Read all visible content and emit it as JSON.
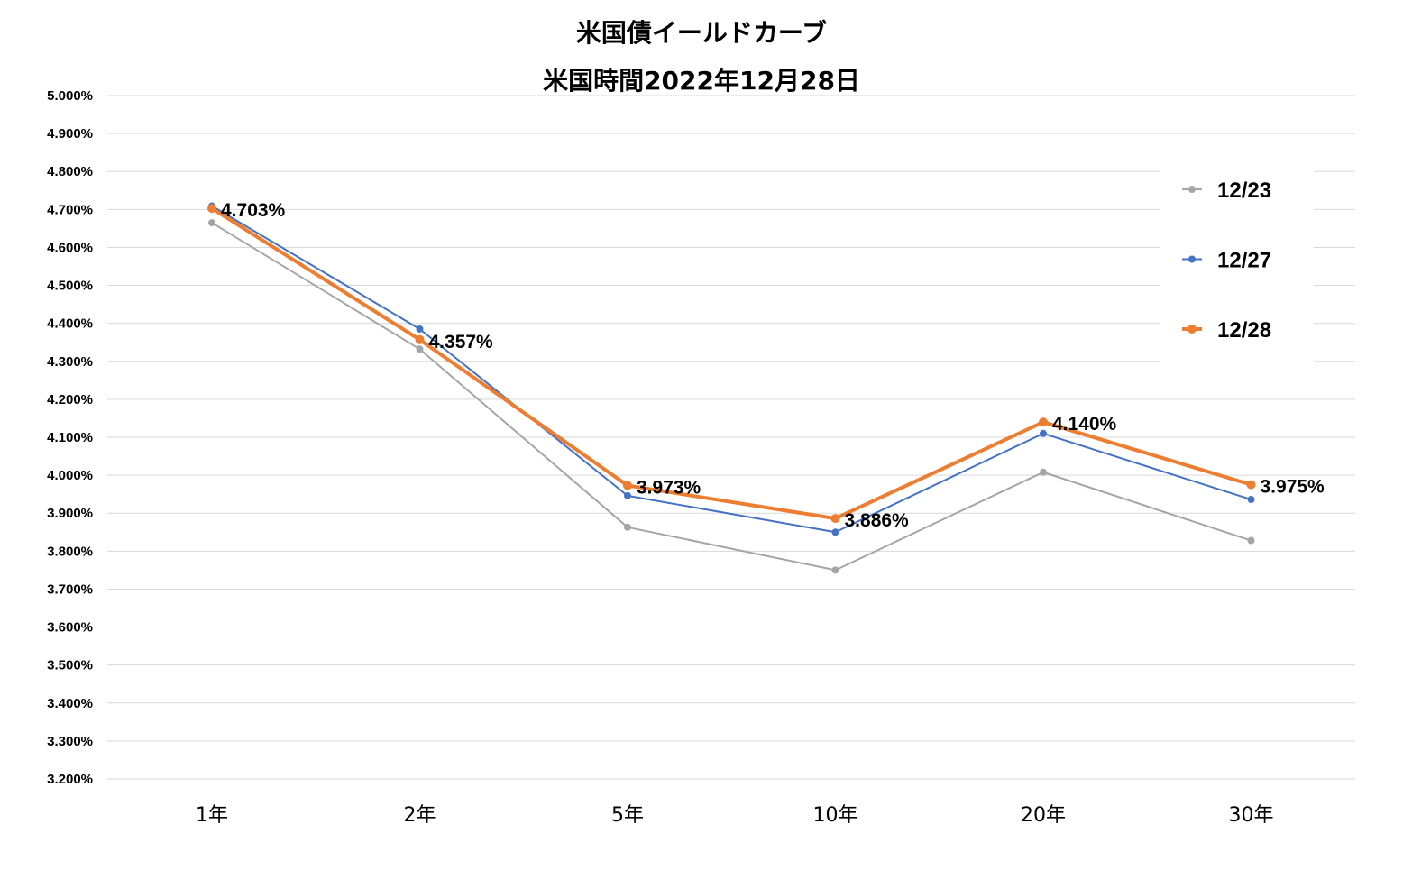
{
  "chart_data": {
    "type": "line",
    "title": "米国債イールドカーブ",
    "subtitle": "米国時間2022年12月28日",
    "categories": [
      "1年",
      "2年",
      "5年",
      "10年",
      "20年",
      "30年"
    ],
    "ylim": [
      3.2,
      5.0
    ],
    "ytick_step": 0.1,
    "ytick_labels": [
      "5.000%",
      "4.900%",
      "4.800%",
      "4.700%",
      "4.600%",
      "4.500%",
      "4.400%",
      "4.300%",
      "4.200%",
      "4.100%",
      "4.000%",
      "3.900%",
      "3.800%",
      "3.700%",
      "3.600%",
      "3.500%",
      "3.400%",
      "3.300%",
      "3.200%"
    ],
    "grid": true,
    "legend_position": "right",
    "series": [
      {
        "name": "12/23",
        "color": "#a5a5a5",
        "values": [
          4.665,
          4.332,
          3.863,
          3.75,
          4.008,
          3.828
        ]
      },
      {
        "name": "12/27",
        "color": "#4472c4",
        "values": [
          4.709,
          4.385,
          3.946,
          3.85,
          4.11,
          3.936
        ]
      },
      {
        "name": "12/28",
        "color": "#ed7d31",
        "values": [
          4.703,
          4.357,
          3.973,
          3.886,
          4.14,
          3.975
        ],
        "data_labels": [
          "4.703%",
          "4.357%",
          "3.973%",
          "3.886%",
          "4.140%",
          "3.975%"
        ]
      }
    ]
  }
}
